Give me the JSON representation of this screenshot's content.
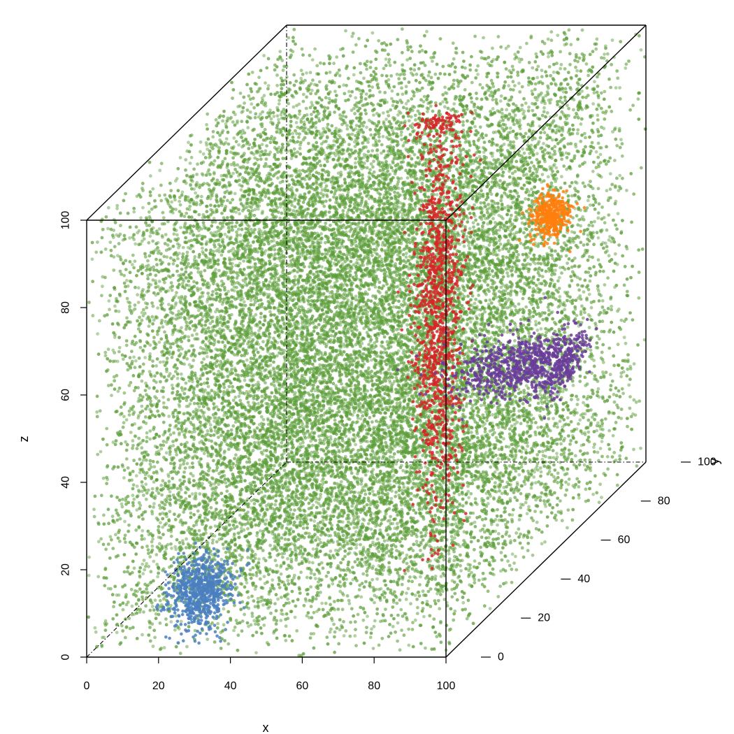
{
  "chart_data": {
    "type": "scatter",
    "projection": "3d",
    "xlabel": "x",
    "ylabel": "y",
    "zlabel": "z",
    "xlim": [
      0,
      100
    ],
    "ylim": [
      0,
      100
    ],
    "zlim": [
      0,
      100
    ],
    "x_ticks": [
      "0",
      "20",
      "40",
      "60",
      "80",
      "100"
    ],
    "y_ticks": [
      "0",
      "20",
      "40",
      "60",
      "80",
      "100"
    ],
    "z_ticks": [
      "0",
      "20",
      "40",
      "60",
      "80",
      "100"
    ],
    "grid": false,
    "legend": "none",
    "series": [
      {
        "shape": "uniform cube",
        "color": "#5d9e3a",
        "center": [
          50,
          50,
          50
        ],
        "spread": [
          50,
          50,
          50
        ],
        "approx_points": 30000
      },
      {
        "shape": "vertical elongated cluster",
        "color": "#d62728",
        "center": [
          70,
          50,
          60
        ],
        "spread": [
          3,
          3,
          25
        ],
        "approx_points": 1200
      },
      {
        "shape": "flat horizontal ellipse",
        "color": "#6a3d9a",
        "center": [
          90,
          60,
          40
        ],
        "spread": [
          10,
          6,
          2.5
        ],
        "approx_points": 900
      },
      {
        "shape": "small sphere",
        "color": "#ff7f0e",
        "center": [
          90,
          70,
          70
        ],
        "spread": [
          2.5,
          2.5,
          2.5
        ],
        "approx_points": 400
      },
      {
        "shape": "sphere",
        "color": "#4a7fc0",
        "center": [
          30,
          2,
          14
        ],
        "spread": [
          4,
          4,
          4
        ],
        "approx_points": 700
      }
    ]
  }
}
